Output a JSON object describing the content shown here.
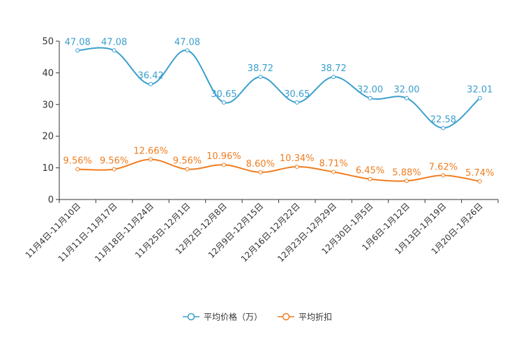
{
  "chart_data": {
    "type": "line",
    "title": "",
    "xlabel": "",
    "ylabel": "",
    "ylim": [
      0,
      50
    ],
    "yticks": [
      "0",
      "10",
      "20",
      "30",
      "40",
      "50"
    ],
    "categories": [
      "11月4日-11月10日",
      "11月11日-11月17日",
      "11月18日-11月24日",
      "11月25日-12月1日",
      "12月2日-12月8日",
      "12月9日-12月15日",
      "12月16日-12月22日",
      "12月23日-12月29日",
      "12月30日-1月5日",
      "1月6日-1月12日",
      "1月13日-1月19日",
      "1月20日-1月26日"
    ],
    "legend_position": "bottom",
    "series": [
      {
        "name": "平均价格（万）",
        "color": "#3a9fce",
        "values": [
          47.08,
          47.08,
          36.42,
          47.08,
          30.65,
          38.72,
          30.65,
          38.72,
          32.0,
          32.0,
          22.58,
          32.01
        ],
        "labels": [
          "47.08",
          "47.08",
          "36.42",
          "47.08",
          "30.65",
          "38.72",
          "30.65",
          "38.72",
          "32.00",
          "32.00",
          "22.58",
          "32.01"
        ]
      },
      {
        "name": "平均折扣",
        "color": "#f07d20",
        "values": [
          9.56,
          9.56,
          12.66,
          9.56,
          10.96,
          8.6,
          10.34,
          8.71,
          6.45,
          5.88,
          7.62,
          5.74
        ],
        "labels": [
          "9.56%",
          "9.56%",
          "12.66%",
          "9.56%",
          "10.96%",
          "8.60%",
          "10.34%",
          "8.71%",
          "6.45%",
          "5.88%",
          "7.62%",
          "5.74%"
        ]
      }
    ]
  }
}
